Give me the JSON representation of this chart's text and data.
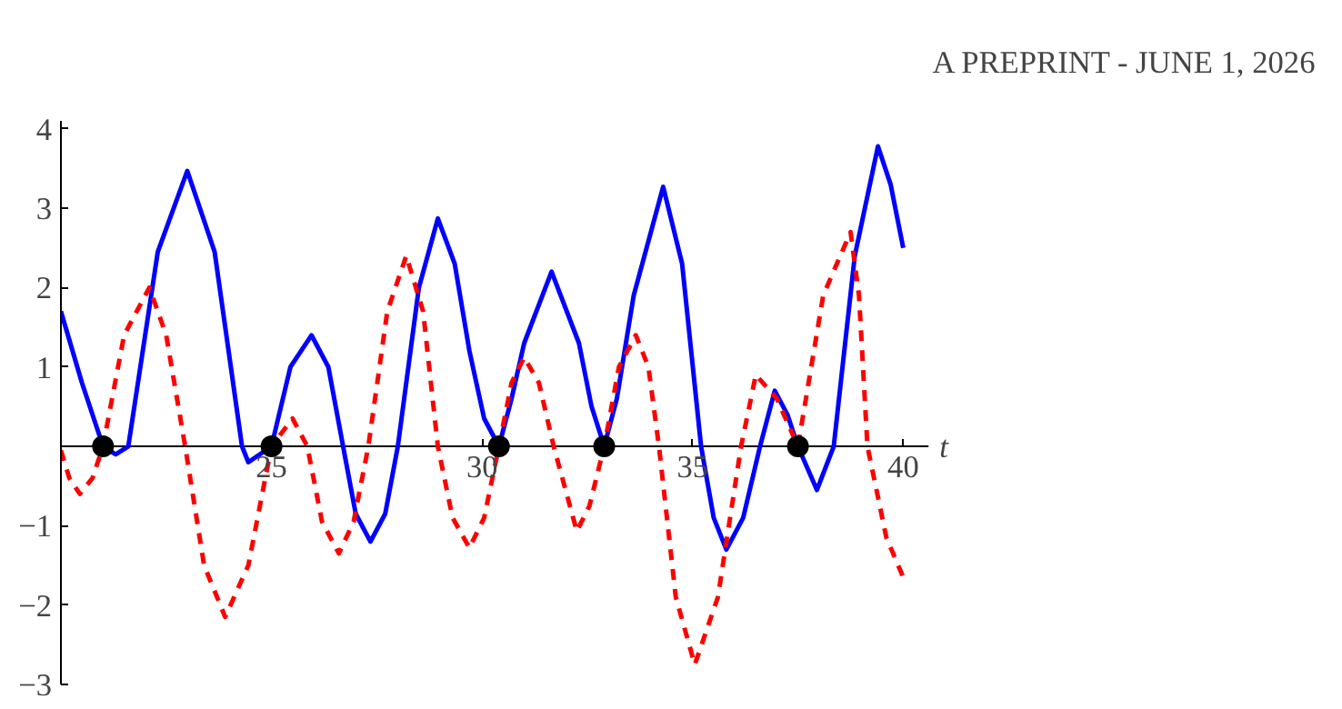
{
  "chart_data": {
    "type": "line",
    "annotations": [
      "A PREPRINT - JUNE 1, 2026"
    ],
    "xlabel": "t",
    "xlim": [
      20,
      40.6
    ],
    "ylim": [
      -3,
      4.1
    ],
    "xticks": [
      25,
      30,
      35,
      40
    ],
    "yticks": [
      -3,
      -2,
      -1,
      1,
      2,
      3,
      4
    ],
    "grid": false,
    "series": [
      {
        "color": "#0000ff",
        "line_style": "solid",
        "x": [
          20,
          20.5,
          21.0,
          21.3,
          21.6,
          22.3,
          23.0,
          23.65,
          24.3,
          24.45,
          25.0,
          25.45,
          25.95,
          26.35,
          26.7,
          27.0,
          27.35,
          27.7,
          28.0,
          28.5,
          28.95,
          29.35,
          29.7,
          30.05,
          30.4,
          30.7,
          31.0,
          31.65,
          32.3,
          32.6,
          32.9,
          33.2,
          33.6,
          34.3,
          34.75,
          35.2,
          35.5,
          35.8,
          36.2,
          36.6,
          36.95,
          37.25,
          37.5,
          37.95,
          38.35,
          38.85,
          39.4,
          39.7,
          40
        ],
        "values": [
          1.7,
          0.8,
          0,
          -0.1,
          0,
          2.45,
          3.47,
          2.45,
          0,
          -0.2,
          0,
          1.0,
          1.4,
          1.0,
          0,
          -0.85,
          -1.2,
          -0.85,
          0,
          2.0,
          2.87,
          2.3,
          1.2,
          0.35,
          0,
          0.6,
          1.3,
          2.2,
          1.3,
          0.5,
          0,
          0.6,
          1.9,
          3.27,
          2.3,
          0,
          -0.9,
          -1.3,
          -0.9,
          0,
          0.7,
          0.4,
          0,
          -0.55,
          0,
          2.4,
          3.78,
          3.3,
          2.5
        ]
      },
      {
        "color": "#ff0000",
        "line_style": "dashed",
        "x": [
          20,
          20.2,
          20.45,
          20.75,
          21.0,
          21.5,
          22.1,
          22.5,
          22.95,
          23.4,
          23.9,
          24.45,
          25.0,
          25.5,
          25.85,
          26.2,
          26.6,
          26.95,
          27.3,
          27.75,
          28.2,
          28.6,
          28.95,
          29.3,
          29.7,
          30.05,
          30.4,
          30.7,
          31.0,
          31.35,
          31.7,
          32.25,
          32.55,
          32.9,
          33.25,
          33.65,
          33.95,
          34.2,
          34.6,
          35.05,
          35.6,
          36.15,
          36.5,
          37.0,
          37.5,
          38.1,
          38.75,
          38.95,
          39.15,
          39.6,
          40
        ],
        "values": [
          -0.05,
          -0.4,
          -0.6,
          -0.4,
          0,
          1.4,
          2.0,
          1.4,
          0,
          -1.5,
          -2.15,
          -1.5,
          0,
          0.35,
          0,
          -0.95,
          -1.35,
          -0.95,
          0,
          1.7,
          2.4,
          1.7,
          0,
          -0.9,
          -1.28,
          -0.9,
          0,
          0.8,
          1.12,
          0.8,
          0,
          -1.07,
          -0.75,
          0,
          1.0,
          1.4,
          1.0,
          0,
          -1.9,
          -2.75,
          -1.9,
          0,
          0.9,
          0.6,
          0,
          1.9,
          2.7,
          1.9,
          0,
          -1.15,
          -1.65
        ]
      },
      {
        "type": "scatter",
        "marker": "circle",
        "color": "#000000",
        "x": [
          21.0,
          25.0,
          30.4,
          32.9,
          37.5
        ],
        "values": [
          0,
          0,
          0,
          0,
          0
        ]
      }
    ]
  }
}
